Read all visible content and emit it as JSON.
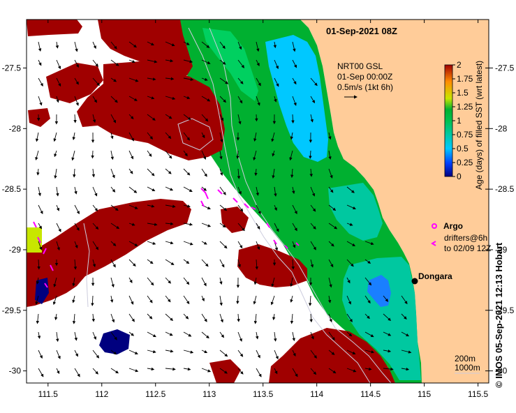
{
  "title": "01-Sep-2021 08Z",
  "velocity_legend": {
    "product": "NRT00 GSL",
    "time": "01-Sep 00:00Z",
    "scale": "0.5m/s (1kt 6h)"
  },
  "colorbar": {
    "label": "Age (days) of filled SST (wrt latest)",
    "ticks": [
      "2",
      "1.75",
      "1.5",
      "1.25",
      "1",
      "0.75",
      "0.5",
      "0.25",
      "0"
    ],
    "min": 0,
    "max": 2,
    "colors": [
      "#00007f",
      "#0040ff",
      "#00c8ff",
      "#00c8a0",
      "#00c050",
      "#00b030",
      "#c8e600",
      "#ff8c00",
      "#a00000"
    ]
  },
  "argo_legend": {
    "label": "Argo",
    "marker_color": "#ff00ff"
  },
  "drifter_legend": {
    "line1": "drifters@6h",
    "line2": "to 02/09 12Z",
    "marker_color": "#ff00ff"
  },
  "place": {
    "name": "Dongara"
  },
  "isobaths": {
    "line1": "200m",
    "line2": "1000m"
  },
  "axes": {
    "x_ticks": [
      "111.5",
      "112",
      "112.5",
      "113",
      "113.5",
      "114",
      "114.5",
      "115",
      "115.5"
    ],
    "y_ticks": [
      "-27.5",
      "-28",
      "-28.5",
      "-29",
      "-29.5",
      "-30"
    ],
    "xlim": [
      111.3,
      115.6
    ],
    "ylim": [
      -30.1,
      -27.1
    ]
  },
  "credit": "© IMOS 05-Sep-2021 12:13 Hobart",
  "colors": {
    "land": "#ffcc99",
    "ocean_no_data": "#ffffff",
    "sst_old": "#a00000",
    "sst_recent": "#00b030",
    "sst_fresh": "#00c8ff"
  }
}
